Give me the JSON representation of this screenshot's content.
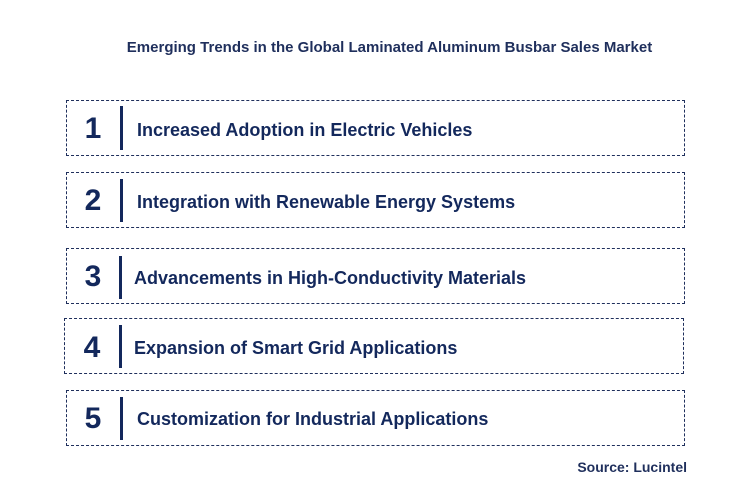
{
  "title": "Emerging Trends in the Global Laminated Aluminum Busbar Sales Market",
  "trends": [
    {
      "number": "1",
      "label": "Increased Adoption in Electric Vehicles"
    },
    {
      "number": "2",
      "label": "Integration with Renewable Energy Systems"
    },
    {
      "number": "3",
      "label": "Advancements in High-Conductivity Materials"
    },
    {
      "number": "4",
      "label": "Expansion of Smart Grid Applications"
    },
    {
      "number": "5",
      "label": "Customization for Industrial Applications"
    }
  ],
  "source": "Source: Lucintel",
  "colors": {
    "primary": "#13285c",
    "border": "#1f2f5c"
  }
}
